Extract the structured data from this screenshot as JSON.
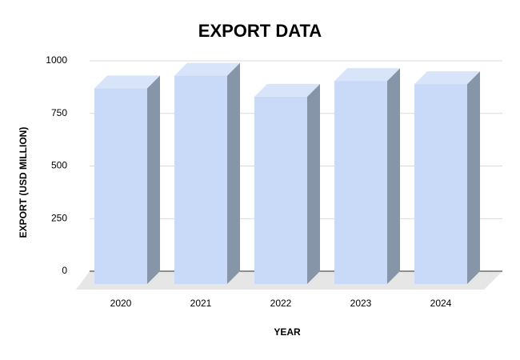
{
  "chart_data": {
    "type": "bar3d",
    "title": "EXPORT DATA",
    "x_label": "YEAR",
    "y_label": "EXPORT (USD MILLION)",
    "categories": [
      "2020",
      "2021",
      "2022",
      "2023",
      "2024"
    ],
    "values": [
      930,
      990,
      890,
      965,
      950
    ],
    "color": "#c9daf8",
    "ylim": [
      0,
      1000
    ],
    "yticks": [
      0,
      250,
      500,
      750,
      1000
    ],
    "grid": true
  }
}
